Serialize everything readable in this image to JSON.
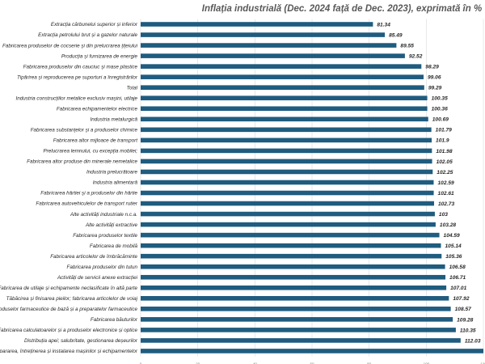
{
  "chart_data": {
    "type": "bar",
    "orientation": "horizontal",
    "title": "Inflația industrială (Dec. 2024 față de  Dec. 2023), exprimată în %",
    "categories": [
      "Extracția cărbunelui superior și inferior",
      "Extracția petrolului brut și a gazelor naturale",
      "Fabricarea produselor de cocserie și din prelucrarea țițeiului",
      "Producția și furnizarea de energie",
      "Fabricarea produselor din cauciuc și mase plastice",
      "Tipărirea și reproducerea pe suporturi a înregistrărilor",
      "Total",
      "Industria construcțiilor metalice  exclusiv mașini, utilaje",
      "Fabricarea echipamentelor electrice",
      "Industria metalurgică",
      "Fabricarea substanțelor și a produselor chimice",
      "Fabricarea altor mijloace de transport",
      "Prelucrarea lemnului,  cu excepția mobilei;",
      "Fabricarea altor produse din minerale nemetalice",
      "Industria prelucrătoare",
      "Industria alimentară",
      "Fabricarea hârtiei și a produselor din hârtie",
      "Fabricarea autovehiculelor de transport rutier",
      "Alte activități industriale n.c.a.",
      "Alte activități extractive",
      "Fabricarea produselor textile",
      "Fabricarea de mobilă",
      "Fabricarea articolelor de îmbrăcăminte",
      "Fabricarea produselor din tutun",
      "Activități de servicii anexe extracției",
      "Fabricarea de utilaje și echipamente neclasificate în altă parte",
      "Tăbăcirea și finisarea pieilor; fabricarea articolelor de voiaj",
      "Fabricarea produselor farmaceutice de bază și a preparatelor farmaceutice",
      "Fabricarea băuturilor",
      "Fabricarea calculatoarelor și a produselor electronice și optice",
      "Distribuția apei; salubritate, gestionarea deșeurilor",
      "Repararea, întreținerea și instalarea mașinilor și echipamentelor"
    ],
    "values": [
      81.34,
      85.49,
      89.55,
      92.52,
      98.29,
      99.06,
      99.29,
      100.35,
      100.36,
      100.69,
      101.79,
      101.9,
      101.98,
      102.05,
      102.25,
      102.59,
      102.61,
      102.73,
      103,
      103.28,
      104.59,
      105.14,
      105.36,
      106.58,
      106.71,
      107.01,
      107.92,
      108.57,
      109.28,
      110.35,
      112.03,
      123.44
    ],
    "value_labels": [
      "81.34",
      "85.49",
      "89.55",
      "92.52",
      "98.29",
      "99.06",
      "99.29",
      "100.35",
      "100.36",
      "100.69",
      "101.79",
      "101.9",
      "101.98",
      "102.05",
      "102.25",
      "102.59",
      "102.61",
      "102.73",
      "103",
      "103.28",
      "104.59",
      "105.14",
      "105.36",
      "106.58",
      "106.71",
      "107.01",
      "107.92",
      "108.57",
      "109.28",
      "110.35",
      "112.03",
      ""
    ],
    "xticks": [
      "0",
      "20",
      "40",
      "60",
      "80",
      "100",
      "120"
    ],
    "xlim": [
      0,
      120
    ],
    "xlabel": "",
    "ylabel": "",
    "grid": true,
    "legend": "none",
    "bar_color": "#1f5c7f",
    "grid_color": "#d9d9d9"
  }
}
